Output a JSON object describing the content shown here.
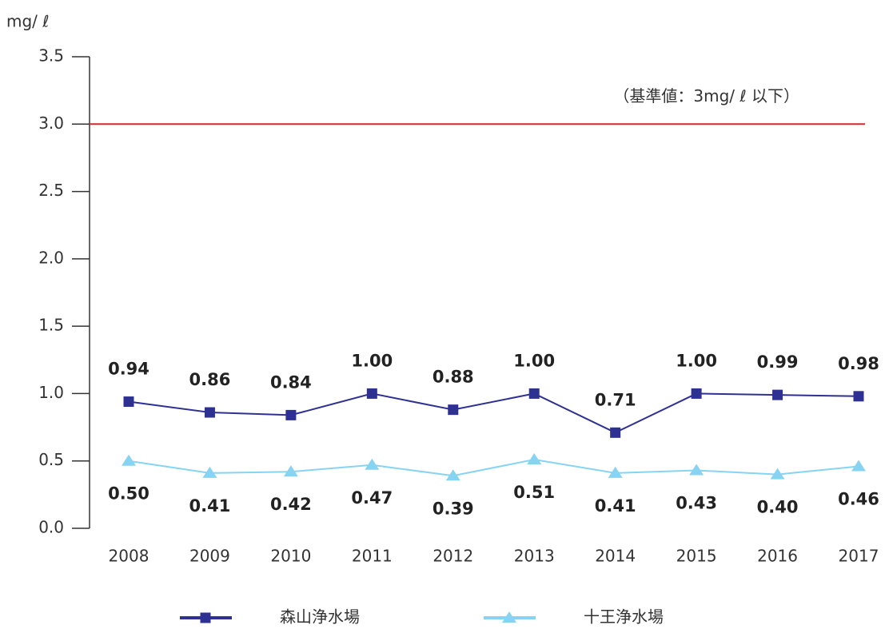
{
  "chart_data": {
    "type": "line",
    "y_unit_label": "mg/ ℓ",
    "categories": [
      "2008",
      "2009",
      "2010",
      "2011",
      "2012",
      "2013",
      "2014",
      "2015",
      "2016",
      "2017"
    ],
    "series": [
      {
        "name": "森山浄水場",
        "color": "#2e3192",
        "marker": "square",
        "values": [
          0.94,
          0.86,
          0.84,
          1.0,
          0.88,
          1.0,
          0.71,
          1.0,
          0.99,
          0.98
        ],
        "value_labels": [
          "0.94",
          "0.86",
          "0.84",
          "1.00",
          "0.88",
          "1.00",
          "0.71",
          "1.00",
          "0.99",
          "0.98"
        ]
      },
      {
        "name": "十王浄水場",
        "color": "#87d3f2",
        "marker": "triangle",
        "values": [
          0.5,
          0.41,
          0.42,
          0.47,
          0.39,
          0.51,
          0.41,
          0.43,
          0.4,
          0.46
        ],
        "value_labels": [
          "0.50",
          "0.41",
          "0.42",
          "0.47",
          "0.39",
          "0.51",
          "0.41",
          "0.43",
          "0.40",
          "0.46"
        ]
      }
    ],
    "ylim": [
      0,
      3.5
    ],
    "yticks": [
      {
        "value": 0,
        "label": "0.0"
      },
      0.5,
      {
        "value": 1,
        "label": "1.0"
      },
      1.5,
      {
        "value": 2,
        "label": "2.0"
      },
      2.5,
      {
        "value": 3,
        "label": "3.0"
      },
      3.5
    ],
    "reference_line": {
      "value": 3,
      "label": "（基準値：3mg/ ℓ 以下）",
      "color": "#d7282f"
    },
    "grid": false
  }
}
